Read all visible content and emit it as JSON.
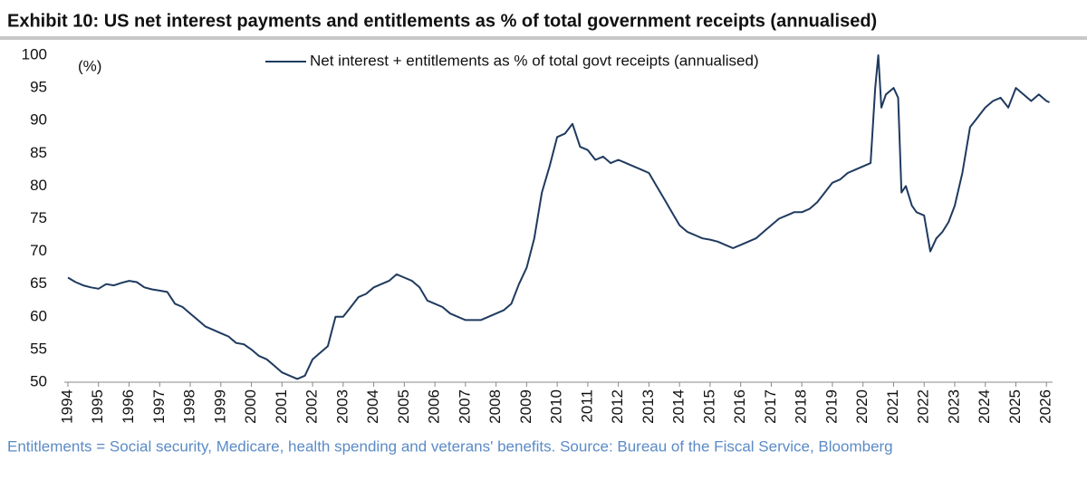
{
  "chart_data": {
    "type": "line",
    "title": "Exhibit 10: US net interest payments and entitlements as % of total government receipts (annualised)",
    "y_unit_label": "(%)",
    "footnote": "Entitlements = Social security, Medicare, health spending and veterans' benefits. Source: Bureau of the Fiscal Service, Bloomberg",
    "x": [
      1994,
      1994.25,
      1994.5,
      1994.75,
      1995,
      1995.25,
      1995.5,
      1995.75,
      1996,
      1996.25,
      1996.5,
      1996.75,
      1997,
      1997.25,
      1997.5,
      1997.75,
      1998,
      1998.25,
      1998.5,
      1998.75,
      1999,
      1999.25,
      1999.5,
      1999.75,
      2000,
      2000.25,
      2000.5,
      2000.75,
      2001,
      2001.25,
      2001.5,
      2001.75,
      2002,
      2002.25,
      2002.5,
      2002.75,
      2003,
      2003.25,
      2003.5,
      2003.75,
      2004,
      2004.25,
      2004.5,
      2004.75,
      2005,
      2005.25,
      2005.5,
      2005.75,
      2006,
      2006.25,
      2006.5,
      2006.75,
      2007,
      2007.25,
      2007.5,
      2007.75,
      2008,
      2008.25,
      2008.5,
      2008.75,
      2009,
      2009.25,
      2009.5,
      2009.75,
      2010,
      2010.25,
      2010.5,
      2010.75,
      2011,
      2011.25,
      2011.5,
      2011.75,
      2012,
      2012.25,
      2012.5,
      2012.75,
      2013,
      2013.25,
      2013.5,
      2013.75,
      2014,
      2014.25,
      2014.5,
      2014.75,
      2015,
      2015.25,
      2015.5,
      2015.75,
      2016,
      2016.25,
      2016.5,
      2016.75,
      2017,
      2017.25,
      2017.5,
      2017.75,
      2018,
      2018.25,
      2018.5,
      2018.75,
      2019,
      2019.25,
      2019.5,
      2019.75,
      2020,
      2020.25,
      2020.4,
      2020.5,
      2020.6,
      2020.75,
      2021,
      2021.15,
      2021.26,
      2021.4,
      2021.6,
      2021.75,
      2022,
      2022.2,
      2022.4,
      2022.6,
      2022.8,
      2023,
      2023.25,
      2023.5,
      2023.75,
      2024,
      2024.25,
      2024.5,
      2024.75,
      2025,
      2025.25,
      2025.5,
      2025.75,
      2026,
      2026.1
    ],
    "series": [
      {
        "name": "Net interest + entitlements as % of total govt receipts (annualised)",
        "color": "#1f3a5f",
        "values": [
          66,
          65.3,
          64.8,
          64.5,
          64.3,
          65,
          64.8,
          65.2,
          65.5,
          65.3,
          64.5,
          64.2,
          64,
          63.8,
          62,
          61.5,
          60.5,
          59.5,
          58.5,
          58,
          57.5,
          57,
          56,
          55.8,
          55,
          54,
          53.5,
          52.5,
          51.5,
          51,
          50.5,
          51,
          53.5,
          54.5,
          55.5,
          60,
          60,
          61.5,
          63,
          63.5,
          64.5,
          65,
          65.5,
          66.5,
          66,
          65.5,
          64.5,
          62.5,
          62,
          61.5,
          60.5,
          60,
          59.5,
          59.5,
          59.5,
          60,
          60.5,
          61,
          62,
          65,
          67.5,
          72,
          79,
          83,
          87.5,
          88,
          89.5,
          86,
          85.5,
          84,
          84.5,
          83.5,
          84,
          83.5,
          83,
          82.5,
          82,
          80,
          78,
          76,
          74,
          73,
          72.5,
          72,
          71.8,
          71.5,
          71,
          70.5,
          71,
          71.5,
          72,
          73,
          74,
          75,
          75.5,
          76,
          76,
          76.5,
          77.5,
          79,
          80.5,
          81,
          82,
          82.5,
          83,
          83.5,
          95,
          100,
          92,
          94,
          95,
          93.5,
          79,
          80,
          77,
          76,
          75.5,
          70,
          72,
          73,
          74.5,
          77,
          82,
          89,
          90.5,
          92,
          93,
          93.5,
          92,
          95,
          94,
          93,
          94,
          93,
          92.8
        ]
      }
    ],
    "xlim": [
      1994,
      2026.2
    ],
    "xticks": [
      1994,
      1995,
      1996,
      1997,
      1998,
      1999,
      2000,
      2001,
      2002,
      2003,
      2004,
      2005,
      2006,
      2007,
      2008,
      2009,
      2010,
      2011,
      2012,
      2013,
      2014,
      2015,
      2016,
      2017,
      2018,
      2019,
      2020,
      2021,
      2022,
      2023,
      2024,
      2025,
      2026
    ],
    "ylim": [
      50,
      100
    ],
    "yticks": [
      50,
      55,
      60,
      65,
      70,
      75,
      80,
      85,
      90,
      95,
      100
    ],
    "grid": false
  }
}
